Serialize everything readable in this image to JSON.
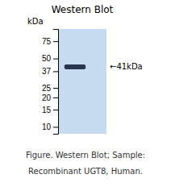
{
  "chart_data": {
    "type": "gel",
    "title": "Western Blot",
    "ylabel": "kDa",
    "log": "y",
    "ylim": [
      8.5,
      100
    ],
    "yticks": [
      75,
      50,
      37,
      25,
      20,
      15,
      10
    ],
    "tick_labels": "y",
    "values": [
      41
    ],
    "color": "#2a3550",
    "annotations": [
      {
        "text": "←41kDa",
        "y": 41
      }
    ],
    "caption": [
      "Figure. Western Blot; Sample:",
      "Recombinant UGT8, Human."
    ]
  }
}
